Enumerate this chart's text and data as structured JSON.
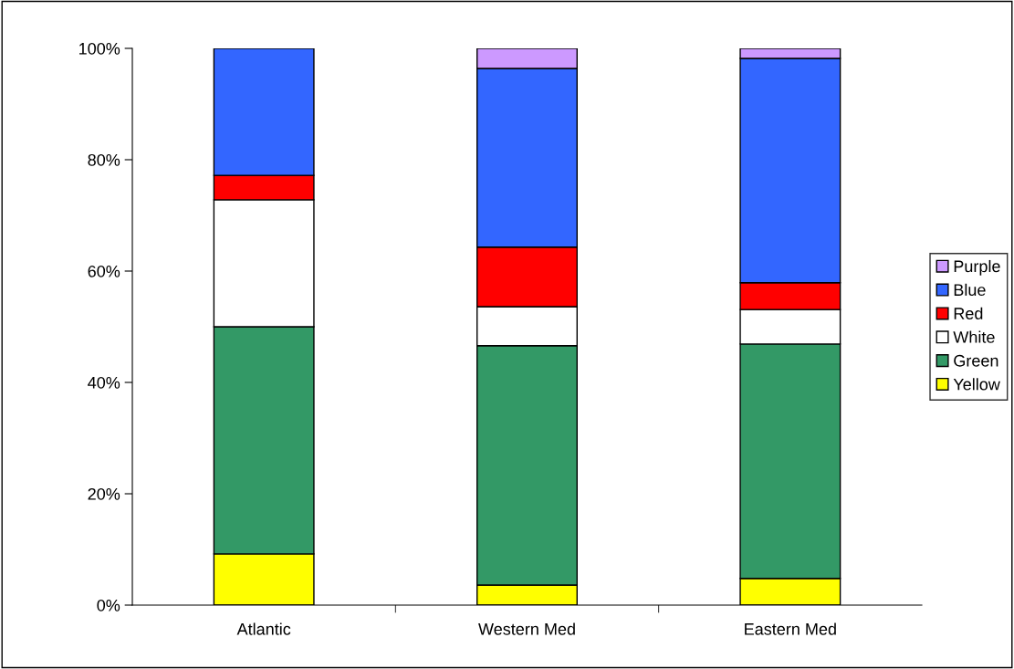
{
  "chart_data": {
    "type": "bar",
    "stacked": true,
    "categories": [
      "Atlantic",
      "Western Med",
      "Eastern Med"
    ],
    "series": [
      {
        "name": "Yellow",
        "color": "#ffff00",
        "values": [
          9.2,
          3.6,
          4.8
        ]
      },
      {
        "name": "Green",
        "color": "#339966",
        "values": [
          40.8,
          43.0,
          42.1
        ]
      },
      {
        "name": "White",
        "color": "#ffffff",
        "values": [
          22.8,
          7.0,
          6.2
        ]
      },
      {
        "name": "Red",
        "color": "#ff0000",
        "values": [
          4.4,
          10.7,
          4.8
        ]
      },
      {
        "name": "Blue",
        "color": "#3366ff",
        "values": [
          22.8,
          32.1,
          40.3
        ]
      },
      {
        "name": "Purple",
        "color": "#cc99ff",
        "values": [
          null,
          3.6,
          1.8
        ]
      }
    ],
    "ylim": [
      0,
      100
    ],
    "yticks": [
      {
        "value": 0,
        "label": "0%"
      },
      {
        "value": 20,
        "label": "20%"
      },
      {
        "value": 40,
        "label": "40%"
      },
      {
        "value": 60,
        "label": "60%"
      },
      {
        "value": 80,
        "label": "80%"
      },
      {
        "value": 100,
        "label": "100%"
      }
    ],
    "grid": false,
    "legend": "right"
  }
}
